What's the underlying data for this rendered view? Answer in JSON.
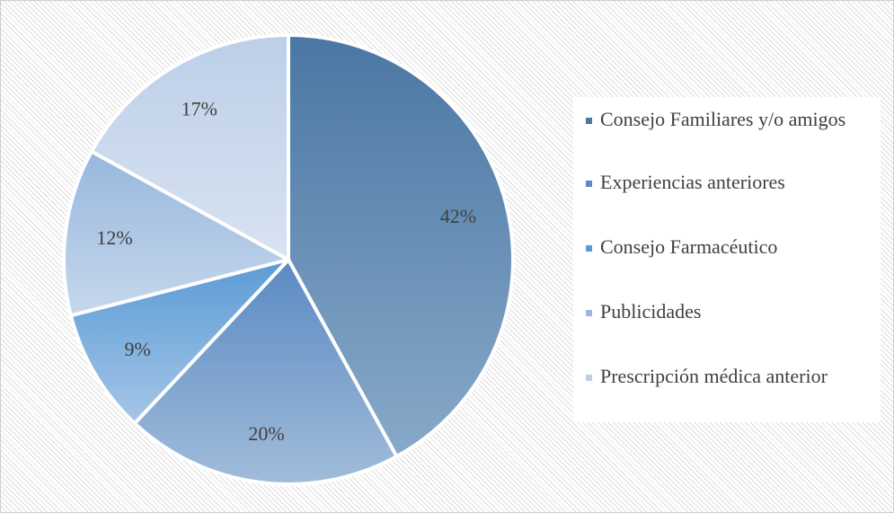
{
  "chart_data": {
    "type": "pie",
    "slices": [
      {
        "label": "Consejo Familiares y/o amigos",
        "value": 42,
        "value_label": "42%",
        "color": "#4a77a3",
        "color_light": "#88a9c9"
      },
      {
        "label": "Experiencias anteriores",
        "value": 20,
        "value_label": "20%",
        "color": "#5a8ac2",
        "color_light": "#a1bcda"
      },
      {
        "label": "Consejo Farmacéutico",
        "value": 9,
        "value_label": "9%",
        "color": "#5b9bd5",
        "color_light": "#a5c6e7"
      },
      {
        "label": "Publicidades",
        "value": 12,
        "value_label": "12%",
        "color": "#98b8de",
        "color_light": "#c6d7ec"
      },
      {
        "label": "Prescripción médica anterior",
        "value": 17,
        "value_label": "17%",
        "color": "#bccfe8",
        "color_light": "#d8e3f2"
      }
    ],
    "start_angle": "top, clockwise",
    "legend_position": "right"
  }
}
